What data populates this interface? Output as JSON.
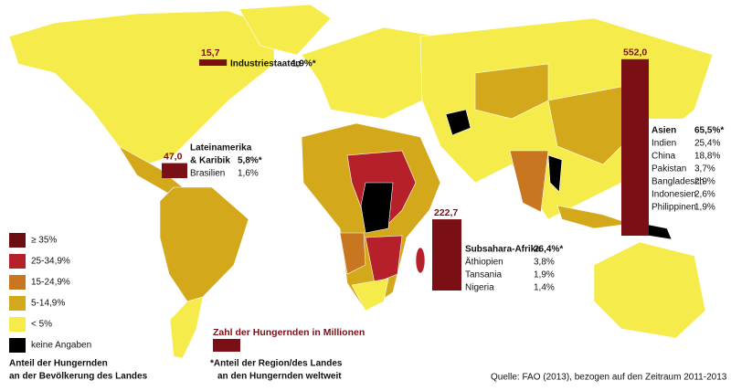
{
  "legend": {
    "items": [
      {
        "label": "≥ 35%",
        "color": "#6b0f14"
      },
      {
        "label": "25-34,9%",
        "color": "#b5202a"
      },
      {
        "label": "15-24,9%",
        "color": "#c8761f"
      },
      {
        "label": "5-14,9%",
        "color": "#d4a81b"
      },
      {
        "label": "< 5%",
        "color": "#f5ec4b"
      },
      {
        "label": "keine Angaben",
        "color": "#000000"
      }
    ],
    "title": [
      "Anteil der Hungernden",
      "an der Bevölkerung des Landes"
    ]
  },
  "regions": [
    {
      "name_lines": [
        "Industriestaaten"
      ],
      "share": "1,9%*",
      "value": 15.7,
      "value_label": "15,7",
      "color": "#7a1016",
      "countries": []
    },
    {
      "name_lines": [
        "Lateinamerika",
        "& Karibik"
      ],
      "share": "5,8%*",
      "value": 47.0,
      "value_label": "47,0",
      "color": "#7a1016",
      "countries": [
        {
          "name": "Brasilien",
          "share": "1,6%"
        }
      ]
    },
    {
      "name_lines": [
        "Asien"
      ],
      "share": "65,5%*",
      "value": 552.0,
      "value_label": "552,0",
      "color": "#7a1016",
      "countries": [
        {
          "name": "Indien",
          "share": "25,4%"
        },
        {
          "name": "China",
          "share": "18,8%"
        },
        {
          "name": "Pakistan",
          "share": "3,7%"
        },
        {
          "name": "Bangladesch",
          "share": "2,9%"
        },
        {
          "name": "Indonesien",
          "share": "2,6%"
        },
        {
          "name": "Philippinen",
          "share": "1,9%"
        }
      ]
    },
    {
      "name_lines": [
        "Subsahara-Afrika"
      ],
      "share": "26,4%*",
      "value": 222.7,
      "value_label": "222,7",
      "color": "#7a1016",
      "countries": [
        {
          "name": "Äthiopien",
          "share": "3,8%"
        },
        {
          "name": "Tansania",
          "share": "1,9%"
        },
        {
          "name": "Nigeria",
          "share": "1,4%"
        }
      ]
    }
  ],
  "bar_legend": "Zahl der Hungernden in Millionen",
  "footnote": [
    "*Anteil der Region/des Landes",
    "an den Hungernden weltweit"
  ],
  "source": "Quelle: FAO (2013), bezogen auf den Zeitraum 2011-2013"
}
